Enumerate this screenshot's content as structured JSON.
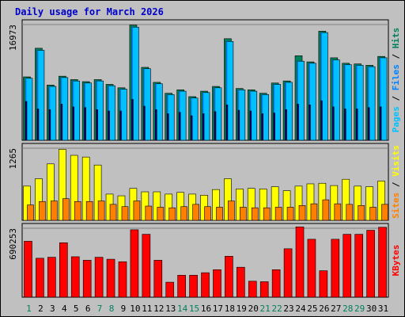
{
  "title": "Daily usage for March 2026",
  "colors": {
    "background": "#c0c0c0",
    "hits": "#00805c",
    "files": "#0080ff",
    "files_light": "#00c0ff",
    "pages": "#00c0ff",
    "visits": "#ffff00",
    "sites": "#ff8000",
    "kbytes": "#ff0000",
    "day_weekday": "#000000",
    "day_weekend": "#00805c",
    "title": "#0000cc"
  },
  "chart_data": [
    {
      "type": "bar",
      "panel": "hits-files-pages",
      "y_tick_label": "16973",
      "ylim": [
        0,
        16973
      ],
      "legend": [
        {
          "label": "Pages",
          "color": "#00c0ff"
        },
        {
          "label": " / ",
          "color": "#000000"
        },
        {
          "label": "Files",
          "color": "#0080ff"
        },
        {
          "label": " / ",
          "color": "#000000"
        },
        {
          "label": "Hits",
          "color": "#00805c"
        }
      ],
      "categories": [
        "1",
        "2",
        "3",
        "4",
        "5",
        "6",
        "7",
        "8",
        "9",
        "10",
        "11",
        "12",
        "13",
        "14",
        "15",
        "16",
        "17",
        "18",
        "19",
        "20",
        "21",
        "22",
        "23",
        "24",
        "25",
        "26",
        "27",
        "28",
        "29",
        "30",
        "31"
      ],
      "series": [
        {
          "name": "Hits",
          "values": [
            9300,
            13500,
            8100,
            9400,
            8900,
            8600,
            8900,
            8200,
            7700,
            16900,
            10700,
            8500,
            6900,
            7400,
            6400,
            7200,
            7900,
            14900,
            7600,
            7400,
            6900,
            8400,
            8700,
            12400,
            11500,
            16000,
            12100,
            11300,
            11200,
            11000,
            12300
          ]
        },
        {
          "name": "Files",
          "values": [
            9100,
            13200,
            7900,
            9200,
            8700,
            8400,
            8700,
            8000,
            7500,
            16600,
            10500,
            8300,
            6700,
            7200,
            6200,
            7000,
            7700,
            14500,
            7400,
            7200,
            6700,
            8200,
            8500,
            11600,
            11300,
            15800,
            11800,
            11100,
            11000,
            10800,
            12100
          ]
        },
        {
          "name": "Pages",
          "values": [
            5700,
            4600,
            4500,
            5300,
            4900,
            4800,
            4500,
            4300,
            4300,
            6000,
            5000,
            4500,
            3900,
            4100,
            3600,
            3900,
            4200,
            5200,
            4400,
            4300,
            3900,
            4000,
            4500,
            5300,
            5200,
            5800,
            4900,
            4600,
            4600,
            4800,
            4900
          ]
        }
      ]
    },
    {
      "type": "bar",
      "panel": "visits-sites",
      "y_tick_label": "1265",
      "ylim": [
        0,
        1265
      ],
      "legend": [
        {
          "label": "Sites",
          "color": "#ff8000"
        },
        {
          "label": " / ",
          "color": "#000000"
        },
        {
          "label": "Visits",
          "color": "#ffff00"
        }
      ],
      "categories": [
        "1",
        "2",
        "3",
        "4",
        "5",
        "6",
        "7",
        "8",
        "9",
        "10",
        "11",
        "12",
        "13",
        "14",
        "15",
        "16",
        "17",
        "18",
        "19",
        "20",
        "21",
        "22",
        "23",
        "24",
        "25",
        "26",
        "27",
        "28",
        "29",
        "30",
        "31"
      ],
      "series": [
        {
          "name": "Visits",
          "values": [
            600,
            730,
            990,
            1245,
            1140,
            1110,
            970,
            460,
            430,
            560,
            500,
            500,
            460,
            490,
            460,
            440,
            540,
            730,
            550,
            560,
            550,
            590,
            520,
            600,
            640,
            650,
            610,
            720,
            600,
            590,
            690
          ]
        },
        {
          "name": "Sites",
          "values": [
            270,
            330,
            340,
            380,
            330,
            330,
            340,
            280,
            240,
            340,
            250,
            230,
            220,
            240,
            280,
            240,
            230,
            340,
            230,
            220,
            220,
            230,
            230,
            260,
            290,
            360,
            290,
            280,
            260,
            230,
            280
          ]
        }
      ]
    },
    {
      "type": "bar",
      "panel": "kbytes",
      "y_tick_label": "690253",
      "ylim": [
        0,
        690253
      ],
      "legend": [
        {
          "label": "KBytes",
          "color": "#ff0000"
        }
      ],
      "categories": [
        "1",
        "2",
        "3",
        "4",
        "5",
        "6",
        "7",
        "8",
        "9",
        "10",
        "11",
        "12",
        "13",
        "14",
        "15",
        "16",
        "17",
        "18",
        "19",
        "20",
        "21",
        "22",
        "23",
        "24",
        "25",
        "26",
        "27",
        "28",
        "29",
        "30",
        "31"
      ],
      "series": [
        {
          "name": "KBytes",
          "values": [
            560000,
            390000,
            400000,
            545000,
            405000,
            370000,
            400000,
            380000,
            355000,
            675000,
            630000,
            370000,
            150000,
            220000,
            220000,
            245000,
            275000,
            410000,
            300000,
            160000,
            155000,
            275000,
            485000,
            710000,
            580000,
            265000,
            580000,
            630000,
            630000,
            670000,
            700000
          ]
        }
      ]
    }
  ]
}
